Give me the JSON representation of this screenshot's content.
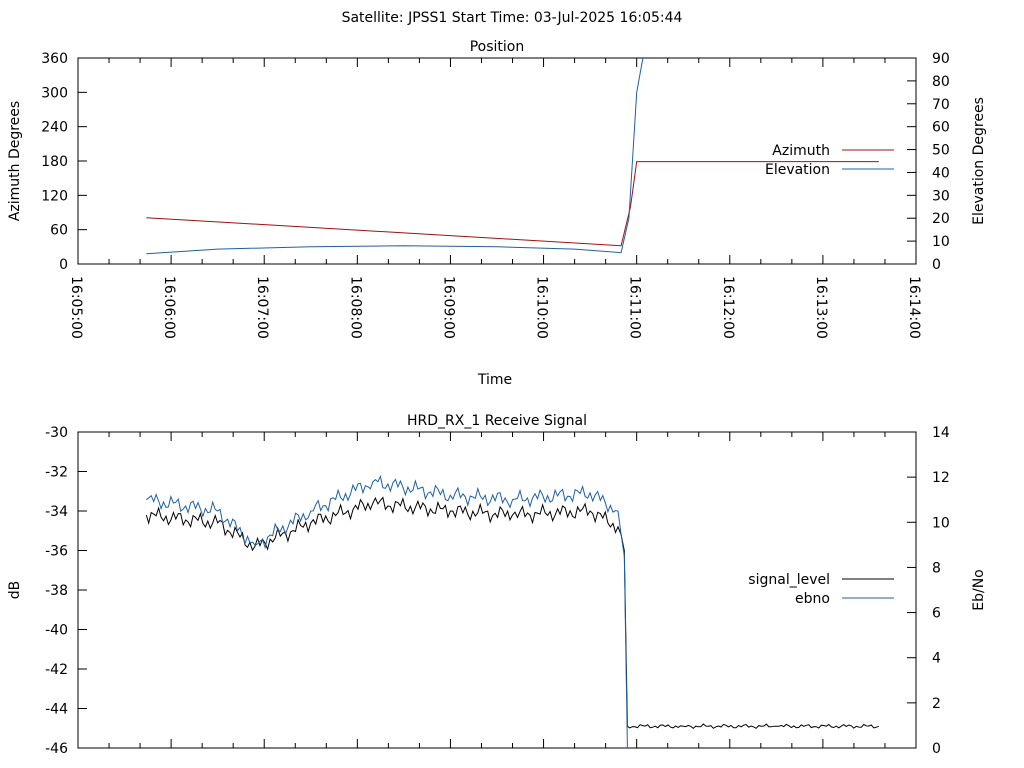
{
  "header": {
    "title": "Satellite: JPSS1    Start Time: 03-Jul-2025 16:05:44"
  },
  "chart_data": [
    {
      "type": "line",
      "title": "Position",
      "xlabel": "Time",
      "ylabel": "Azimuth Degrees",
      "y2label": "Elevation Degrees",
      "xlim": [
        "16:05:00",
        "16:14:00"
      ],
      "ylim": [
        0,
        360
      ],
      "y2lim": [
        0,
        90
      ],
      "xticks": [
        "16:05:00",
        "16:06:00",
        "16:07:00",
        "16:08:00",
        "16:09:00",
        "16:10:00",
        "16:11:00",
        "16:12:00",
        "16:13:00",
        "16:14:00"
      ],
      "yticks": [
        "0",
        "60",
        "120",
        "180",
        "240",
        "300",
        "360"
      ],
      "y2ticks": [
        "0",
        "10",
        "20",
        "30",
        "40",
        "50",
        "60",
        "70",
        "80",
        "90"
      ],
      "legend_position": "right",
      "grid": false,
      "series": [
        {
          "name": "Azimuth",
          "axis": "y",
          "color": "#a01010",
          "x": [
            "16:05:44",
            "16:10:50",
            "16:10:56",
            "16:11:00",
            "16:13:36"
          ],
          "y": [
            81,
            32,
            100,
            179,
            179
          ]
        },
        {
          "name": "Elevation",
          "axis": "y2",
          "color": "#2060a0",
          "x": [
            "16:05:44",
            "16:06:30",
            "16:07:30",
            "16:08:30",
            "16:09:30",
            "16:10:20",
            "16:10:50",
            "16:10:55",
            "16:11:00",
            "16:11:04"
          ],
          "y": [
            4.5,
            6.5,
            7.5,
            8,
            7.5,
            6.5,
            5,
            20,
            75,
            90
          ]
        }
      ]
    },
    {
      "type": "line",
      "title": "HRD_RX_1 Receive Signal",
      "xlabel": "",
      "ylabel": "dB",
      "y2label": "Eb/No",
      "xlim": [
        "16:05:00",
        "16:14:00"
      ],
      "ylim": [
        -46,
        -30
      ],
      "y2lim": [
        0,
        14
      ],
      "yticks": [
        "-46",
        "-44",
        "-42",
        "-40",
        "-38",
        "-36",
        "-34",
        "-32",
        "-30"
      ],
      "y2ticks": [
        "0",
        "2",
        "4",
        "6",
        "8",
        "10",
        "12",
        "14"
      ],
      "legend_position": "right",
      "grid": false,
      "series": [
        {
          "name": "signal_level",
          "axis": "y",
          "color": "#000000",
          "x": [
            "16:05:44",
            "16:06:30",
            "16:06:54",
            "16:07:30",
            "16:08:10",
            "16:09:00",
            "16:09:40",
            "16:10:30",
            "16:10:48",
            "16:10:52",
            "16:10:54",
            "16:11:30",
            "16:12:30",
            "16:13:36"
          ],
          "y": [
            -34.2,
            -34.6,
            -35.8,
            -34.6,
            -33.6,
            -34.0,
            -34.2,
            -34.0,
            -34.8,
            -36.0,
            -44.9,
            -44.9,
            -44.9,
            -44.9
          ]
        },
        {
          "name": "ebno",
          "axis": "y2",
          "color": "#2060a0",
          "x": [
            "16:05:44",
            "16:06:30",
            "16:06:54",
            "16:07:30",
            "16:08:10",
            "16:09:00",
            "16:09:40",
            "16:10:30",
            "16:10:48",
            "16:10:52",
            "16:10:54"
          ],
          "y": [
            11.0,
            10.5,
            9.0,
            10.5,
            11.8,
            11.2,
            11.0,
            11.3,
            10.5,
            8.5,
            0
          ]
        }
      ]
    }
  ]
}
